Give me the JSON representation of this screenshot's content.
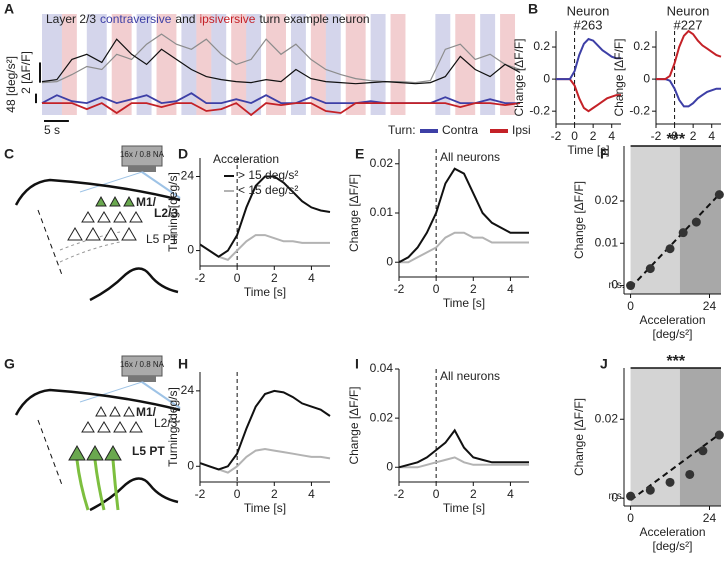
{
  "chart_data": [
    {
      "type": "trace",
      "panel_label": "A",
      "title_parts": [
        {
          "text": "Layer 2/3",
          "color": "#222222"
        },
        {
          "text": "contraversive",
          "color": "#3d3fa6"
        },
        {
          "text": "and",
          "color": "#222222"
        },
        {
          "text": "ipsiversive",
          "color": "#c42127"
        },
        {
          "text": "turn example neuron",
          "color": "#222222"
        }
      ],
      "x": [
        0,
        3,
        6,
        9,
        12,
        15,
        18,
        21,
        24,
        27,
        30,
        33,
        36,
        39,
        42,
        45,
        48,
        51,
        54,
        57,
        60,
        63,
        66,
        69,
        72,
        75,
        78,
        81,
        84,
        87,
        90,
        93,
        96
      ],
      "xlim": [
        0,
        96
      ],
      "ylim": [
        -3,
        6
      ],
      "y2lim": [
        -60,
        400
      ],
      "series": [
        {
          "color": "#8c8c8c",
          "values": [
            0.2,
            0.3,
            1.0,
            1.8,
            1.5,
            3.0,
            2.5,
            4.0,
            5.0,
            4.0,
            3.5,
            4.5,
            3.0,
            2.0,
            2.5,
            4.5,
            3.0,
            4.0,
            2.5,
            1.5,
            1.0,
            0.6,
            0.4,
            0.3,
            0.3,
            0.2,
            0.4,
            3.5,
            4.0,
            2.5,
            3.0,
            2.0,
            1.5
          ]
        },
        {
          "color": "#111111",
          "values": [
            0.3,
            0.5,
            2.5,
            3.0,
            2.2,
            4.5,
            3.0,
            2.0,
            3.5,
            2.5,
            1.5,
            0.8,
            0.5,
            0.3,
            0.2,
            0.5,
            0.3,
            1.5,
            0.6,
            0.3,
            0.2,
            0.1,
            0.2,
            0.3,
            0.2,
            0.1,
            0.2,
            0.8,
            2.8,
            1.5,
            0.8,
            2.0,
            1.2
          ]
        },
        {
          "name": "Contra",
          "color": "#3d3fa6",
          "axis": "y2",
          "values": [
            0,
            40,
            10,
            0,
            30,
            0,
            20,
            40,
            0,
            10,
            50,
            0,
            0,
            20,
            0,
            40,
            0,
            0,
            30,
            0,
            0,
            0,
            10,
            0,
            0,
            0,
            0,
            30,
            0,
            0,
            20,
            0,
            0
          ],
          "bands": [
            [
              0,
              4
            ],
            [
              9,
              13
            ],
            [
              19,
              22
            ],
            [
              28,
              31
            ],
            [
              34,
              37
            ],
            [
              41,
              44
            ],
            [
              50,
              53
            ],
            [
              57,
              60
            ],
            [
              66,
              69
            ],
            [
              79,
              82
            ],
            [
              88,
              91
            ]
          ]
        },
        {
          "name": "Ipsi",
          "color": "#c42127",
          "axis": "y2",
          "values": [
            0,
            0,
            0,
            -30,
            0,
            -50,
            0,
            0,
            -20,
            0,
            0,
            -40,
            -30,
            0,
            -60,
            0,
            -10,
            0,
            0,
            -40,
            -50,
            0,
            0,
            0,
            0,
            0,
            0,
            0,
            -20,
            0,
            0,
            -10,
            0
          ],
          "bands": [
            [
              4,
              7
            ],
            [
              14,
              18
            ],
            [
              23,
              27
            ],
            [
              31,
              34
            ],
            [
              38,
              41
            ],
            [
              45,
              49
            ],
            [
              54,
              57
            ],
            [
              61,
              65
            ],
            [
              70,
              73
            ],
            [
              83,
              87
            ],
            [
              92,
              95
            ]
          ]
        }
      ],
      "scalebars": [
        {
          "value": 48,
          "label": "48 [deg/s²]",
          "axis": "y2"
        },
        {
          "value": 2,
          "label": "2 [ΔF/F]",
          "axis": "y"
        },
        {
          "value": 5,
          "label": "5 s",
          "axis": "x"
        }
      ],
      "legend_title": "Turn:"
    },
    {
      "type": "line",
      "panel_label": "B",
      "title_lines": [
        "Neuron",
        "#263"
      ],
      "title_color": "#222222",
      "ylabel": "Change [ΔF/F]",
      "xlabel": "Time [s]",
      "x": [
        -2,
        -1.5,
        -1,
        -0.5,
        0,
        0.5,
        1,
        1.5,
        2,
        2.5,
        3,
        3.5,
        4,
        4.5,
        5
      ],
      "xlim": [
        -2,
        5
      ],
      "xticks": [
        -2,
        0,
        2,
        4
      ],
      "ylim": [
        -0.28,
        0.3
      ],
      "yticks": [
        -0.2,
        0,
        0.2
      ],
      "vline": 0,
      "series": [
        {
          "color": "#3d3fa6",
          "values": [
            0,
            0,
            0,
            0,
            0.05,
            0.15,
            0.22,
            0.25,
            0.24,
            0.21,
            0.18,
            0.16,
            0.14,
            0.13,
            0.13
          ]
        },
        {
          "color": "#c42127",
          "values": [
            0,
            0,
            0,
            0,
            -0.04,
            -0.12,
            -0.18,
            -0.2,
            -0.18,
            -0.16,
            -0.14,
            -0.12,
            -0.11,
            -0.1,
            -0.1
          ]
        }
      ]
    },
    {
      "type": "line",
      "title_lines": [
        "Neuron",
        "#227"
      ],
      "title_color": "#8c8c8c",
      "ylabel": "Change [ΔF/F]",
      "xlabel": "Time [s]",
      "x": [
        -2,
        -1.5,
        -1,
        -0.5,
        0,
        0.5,
        1,
        1.5,
        2,
        2.5,
        3,
        3.5,
        4,
        4.5,
        5
      ],
      "xlim": [
        -2,
        5
      ],
      "xticks": [
        -2,
        0,
        2,
        4
      ],
      "ylim": [
        -0.28,
        0.3
      ],
      "yticks": [
        -0.2,
        0,
        0.2
      ],
      "vline": 0,
      "series": [
        {
          "color": "#c42127",
          "values": [
            0,
            0,
            0,
            0.02,
            0.1,
            0.2,
            0.27,
            0.3,
            0.28,
            0.24,
            0.21,
            0.19,
            0.17,
            0.15,
            0.14
          ]
        },
        {
          "color": "#3d3fa6",
          "values": [
            0,
            0,
            0,
            -0.01,
            -0.06,
            -0.13,
            -0.17,
            -0.17,
            -0.15,
            -0.12,
            -0.1,
            -0.08,
            -0.07,
            -0.06,
            -0.06
          ]
        }
      ]
    },
    {
      "type": "line",
      "panel_label": "D",
      "ylabel": "Turning [deg/s]",
      "xlabel": "Time [s]",
      "x": [
        -2,
        -1.5,
        -1,
        -0.5,
        0,
        0.5,
        1,
        1.5,
        2,
        2.5,
        3,
        3.5,
        4,
        4.5,
        5
      ],
      "xlim": [
        -2,
        5
      ],
      "xticks": [
        -2,
        0,
        2,
        4
      ],
      "ylim": [
        -5,
        30
      ],
      "yticks": [
        0,
        24
      ],
      "vline": 0,
      "legend_title": "Acceleration",
      "series": [
        {
          "name": "> 15 deg/s²",
          "color": "#111111",
          "values": [
            2,
            0,
            -2,
            0,
            5,
            14,
            21,
            24,
            24,
            22,
            19,
            16,
            14,
            13,
            12.5
          ]
        },
        {
          "name": "< 15 deg/s²",
          "color": "#b3b3b3",
          "values": [
            2,
            0,
            -2,
            -3,
            0,
            3,
            5,
            5,
            4,
            3,
            3,
            2.5,
            2.5,
            2.5,
            2.5
          ]
        }
      ]
    },
    {
      "type": "line",
      "panel_label": "E",
      "title": "All neurons",
      "ylabel": "Change [ΔF/F]",
      "xlabel": "Time [s]",
      "x": [
        -2,
        -1.5,
        -1,
        -0.5,
        0,
        0.5,
        1,
        1.5,
        2,
        2.5,
        3,
        3.5,
        4,
        4.5,
        5
      ],
      "xlim": [
        -2,
        5
      ],
      "xticks": [
        -2,
        0,
        2,
        4
      ],
      "ylim": [
        -0.003,
        0.023
      ],
      "yticks": [
        0,
        0.01,
        0.02
      ],
      "vline": 0,
      "series": [
        {
          "color": "#111111",
          "values": [
            0,
            0.001,
            0.003,
            0.006,
            0.01,
            0.016,
            0.019,
            0.018,
            0.014,
            0.01,
            0.008,
            0.007,
            0.006,
            0.006,
            0.006
          ]
        },
        {
          "color": "#b3b3b3",
          "values": [
            0,
            0,
            0.001,
            0.002,
            0.003,
            0.005,
            0.006,
            0.006,
            0.005,
            0.005,
            0.004,
            0.004,
            0.004,
            0.004,
            0.004
          ]
        }
      ]
    },
    {
      "type": "scatter",
      "panel_label": "F",
      "ylabel": "Change [ΔF/F]",
      "xlabel_lines": [
        "Acceleration",
        "[deg/s²]"
      ],
      "x": [
        0,
        6,
        12,
        16,
        20,
        27
      ],
      "values": [
        0,
        0.004,
        0.0087,
        0.0125,
        0.015,
        0.0215
      ],
      "color": "#333333",
      "xlim": [
        -2,
        27.5
      ],
      "xticks": [
        0,
        24
      ],
      "ylim": [
        -0.002,
        0.033
      ],
      "yticks": [
        0,
        0.01,
        0.02
      ],
      "regions": [
        {
          "range": [
            0,
            15
          ],
          "color": "#d4d4d4"
        },
        {
          "range": [
            15,
            27.5
          ],
          "color": "#a8a8a8"
        }
      ],
      "fit": {
        "x": [
          0,
          27.5
        ],
        "y": [
          -0.0005,
          0.022
        ]
      },
      "significance": "***",
      "ns_label": "n.s."
    },
    {
      "type": "line",
      "panel_label": "H",
      "ylabel": "Turning [deg/s]",
      "xlabel": "Time [s]",
      "x": [
        -2,
        -1.5,
        -1,
        -0.5,
        0,
        0.5,
        1,
        1.5,
        2,
        2.5,
        3,
        3.5,
        4,
        4.5,
        5
      ],
      "xlim": [
        -2,
        5
      ],
      "xticks": [
        -2,
        0,
        2,
        4
      ],
      "ylim": [
        -5,
        30
      ],
      "yticks": [
        0,
        24
      ],
      "vline": 0,
      "series": [
        {
          "color": "#111111",
          "values": [
            1,
            0,
            -1,
            0,
            4,
            12,
            19,
            23,
            24,
            23.5,
            22,
            20,
            19,
            18,
            16
          ]
        },
        {
          "color": "#b3b3b3",
          "values": [
            1,
            0,
            -1,
            -2,
            0,
            3,
            5,
            5.5,
            5,
            4.5,
            4,
            3.5,
            3,
            3,
            2.5
          ]
        }
      ]
    },
    {
      "type": "line",
      "panel_label": "I",
      "title": "All neurons",
      "ylabel": "Change [ΔF/F]",
      "xlabel": "Time [s]",
      "x": [
        -2,
        -1.5,
        -1,
        -0.5,
        0,
        0.5,
        1,
        1.5,
        2,
        2.5,
        3,
        3.5,
        4,
        4.5,
        5
      ],
      "xlim": [
        -2,
        5
      ],
      "xticks": [
        -2,
        0,
        2,
        4
      ],
      "ylim": [
        -0.006,
        0.04
      ],
      "yticks": [
        0,
        0.02,
        0.04
      ],
      "vline": 0,
      "series": [
        {
          "color": "#111111",
          "values": [
            0,
            0.001,
            0.002,
            0.004,
            0.007,
            0.01,
            0.015,
            0.008,
            0.004,
            0.003,
            0.002,
            0.002,
            0.002,
            0.002,
            0.002
          ]
        },
        {
          "color": "#b3b3b3",
          "values": [
            0,
            0,
            0,
            0.001,
            0.002,
            0.003,
            0.004,
            0.002,
            0.001,
            0.001,
            0.001,
            0.001,
            0.001,
            0.001,
            0.001
          ]
        }
      ]
    },
    {
      "type": "scatter",
      "panel_label": "J",
      "ylabel": "Change [ΔF/F]",
      "xlabel_lines": [
        "Acceleration",
        "[deg/s²]"
      ],
      "x": [
        0,
        6,
        12,
        18,
        22,
        27
      ],
      "values": [
        0.0005,
        0.002,
        0.004,
        0.006,
        0.012,
        0.016
      ],
      "color": "#333333",
      "xlim": [
        -2,
        27.5
      ],
      "xticks": [
        0,
        24
      ],
      "ylim": [
        -0.002,
        0.033
      ],
      "yticks": [
        0,
        0.02
      ],
      "regions": [
        {
          "range": [
            0,
            15
          ],
          "color": "#d4d4d4"
        },
        {
          "range": [
            15,
            27.5
          ],
          "color": "#a8a8a8"
        }
      ],
      "fit": {
        "x": [
          0,
          27.5
        ],
        "y": [
          -0.0005,
          0.0165
        ]
      },
      "significance": "***",
      "ns_label": "n.s."
    }
  ],
  "diagrams": [
    {
      "panel_label": "C",
      "objective": "16x / 0.8 NA",
      "labels": [
        "M1/",
        "L2/3",
        "L5 PT"
      ]
    },
    {
      "panel_label": "G",
      "objective": "16x / 0.8 NA",
      "labels": [
        "M1/",
        "L2/3",
        "L5 PT"
      ]
    }
  ]
}
